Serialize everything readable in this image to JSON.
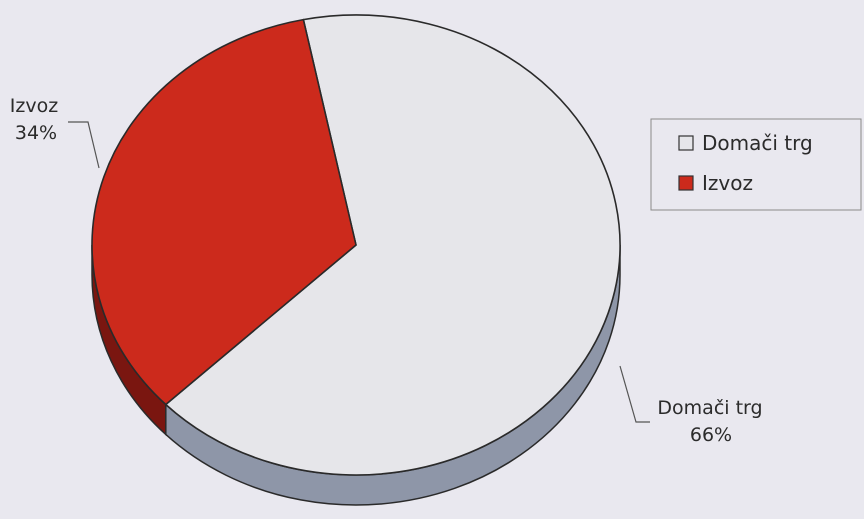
{
  "chart_data": {
    "type": "pie",
    "style": "3d",
    "slices": [
      {
        "label": "Domači trg",
        "value": 66,
        "value_label": "66%",
        "color": "#e6e6ea",
        "side_color": "#8e96a8"
      },
      {
        "label": "Izvoz",
        "value": 34,
        "value_label": "34%",
        "color": "#cc2a1c",
        "side_color": "#7a1610"
      }
    ],
    "legend": {
      "placement": "right",
      "entries": [
        "Domači trg",
        "Izvoz"
      ]
    }
  }
}
